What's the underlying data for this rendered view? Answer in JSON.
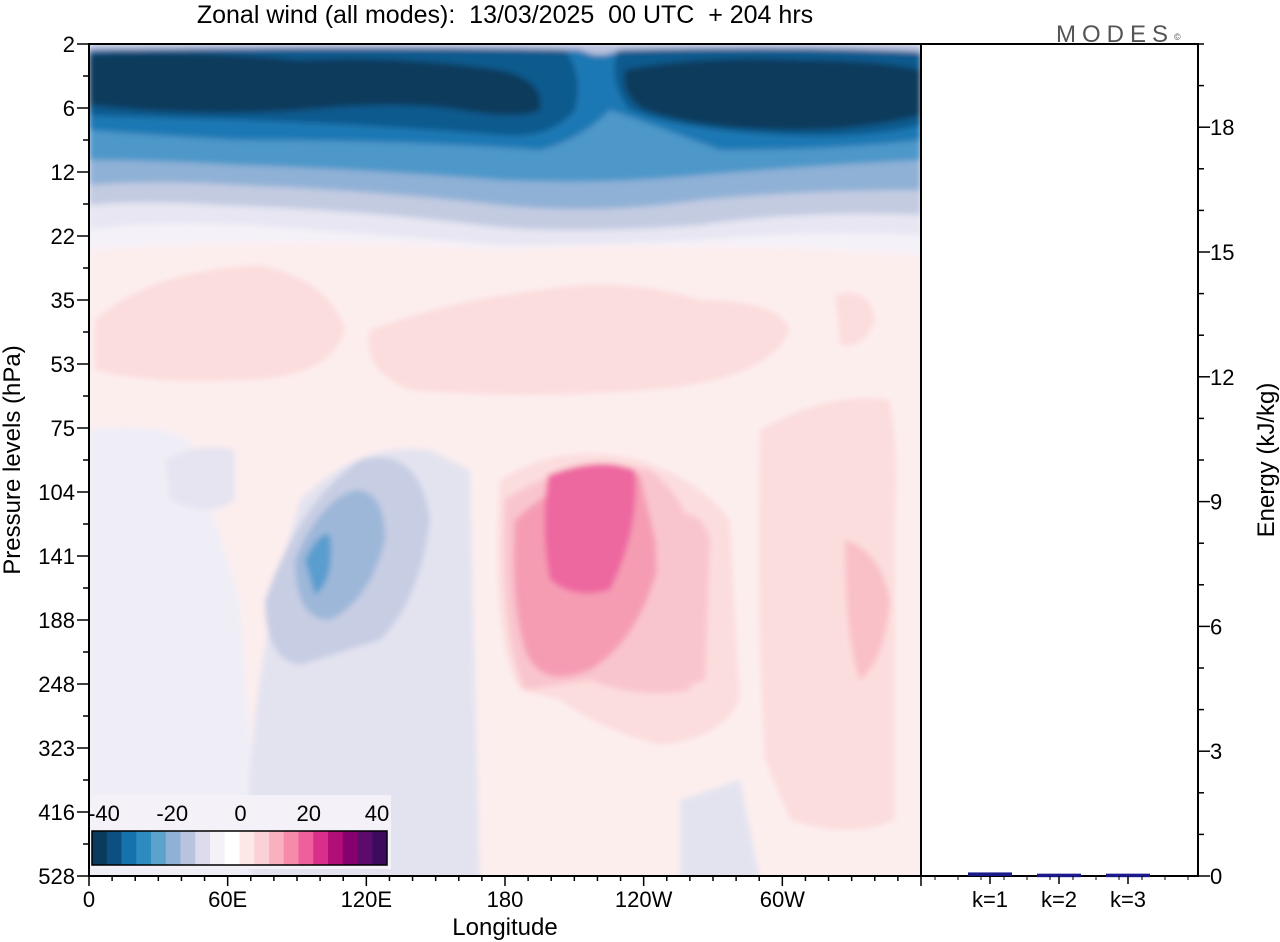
{
  "title": "Zonal wind (all modes):  13/03/2025  00 UTC  + 204 hrs",
  "logo": {
    "text": "MODES",
    "mark": "©"
  },
  "chart_data": [
    {
      "type": "heatmap",
      "title": "Zonal wind (all modes):  13/03/2025  00 UTC  + 204 hrs",
      "xlabel": "Longitude",
      "ylabel": "Pressure levels (hPa)",
      "x_ticks": [
        "0",
        "60E",
        "120E",
        "180",
        "120W",
        "60W"
      ],
      "y_ticks": [
        "2",
        "6",
        "12",
        "22",
        "35",
        "53",
        "75",
        "104",
        "141",
        "188",
        "248",
        "323",
        "416",
        "528"
      ],
      "xlim": [
        0,
        360
      ],
      "colorbar": {
        "labels": [
          "-40",
          "-20",
          "0",
          "20",
          "40"
        ],
        "range": [
          -40,
          40
        ],
        "colors": [
          "#0a3a5c",
          "#0d4f80",
          "#1672ac",
          "#2e8bc0",
          "#5ba3cd",
          "#8fb1d6",
          "#b9c3de",
          "#dcdcec",
          "#f5f1f8",
          "#ffffff",
          "#fde8e8",
          "#fcd1d6",
          "#f9b0bf",
          "#f58ba8",
          "#ee5f9c",
          "#d92e8a",
          "#b10e78",
          "#86016f",
          "#5c0a6b",
          "#3e0a5e"
        ]
      },
      "fields": [
        {
          "lon": [
            5,
            100
          ],
          "level": "2-12",
          "value": -40
        },
        {
          "lon": [
            195,
            355
          ],
          "level": "2-12",
          "value": -40
        },
        {
          "lon": [
            210,
            240
          ],
          "level": "104-188",
          "value": 30
        },
        {
          "lon": [
            90,
            115
          ],
          "level": "104-188",
          "value": -20
        }
      ]
    },
    {
      "type": "bar",
      "categories": [
        "k=1",
        "k=2",
        "k=3"
      ],
      "values": [
        0.05,
        0.02,
        0.02
      ],
      "ylabel": "Energy (kJ/kg)",
      "ylim": [
        0,
        20
      ],
      "y_ticks": [
        "0",
        "3",
        "6",
        "9",
        "12",
        "15",
        "18"
      ]
    }
  ]
}
